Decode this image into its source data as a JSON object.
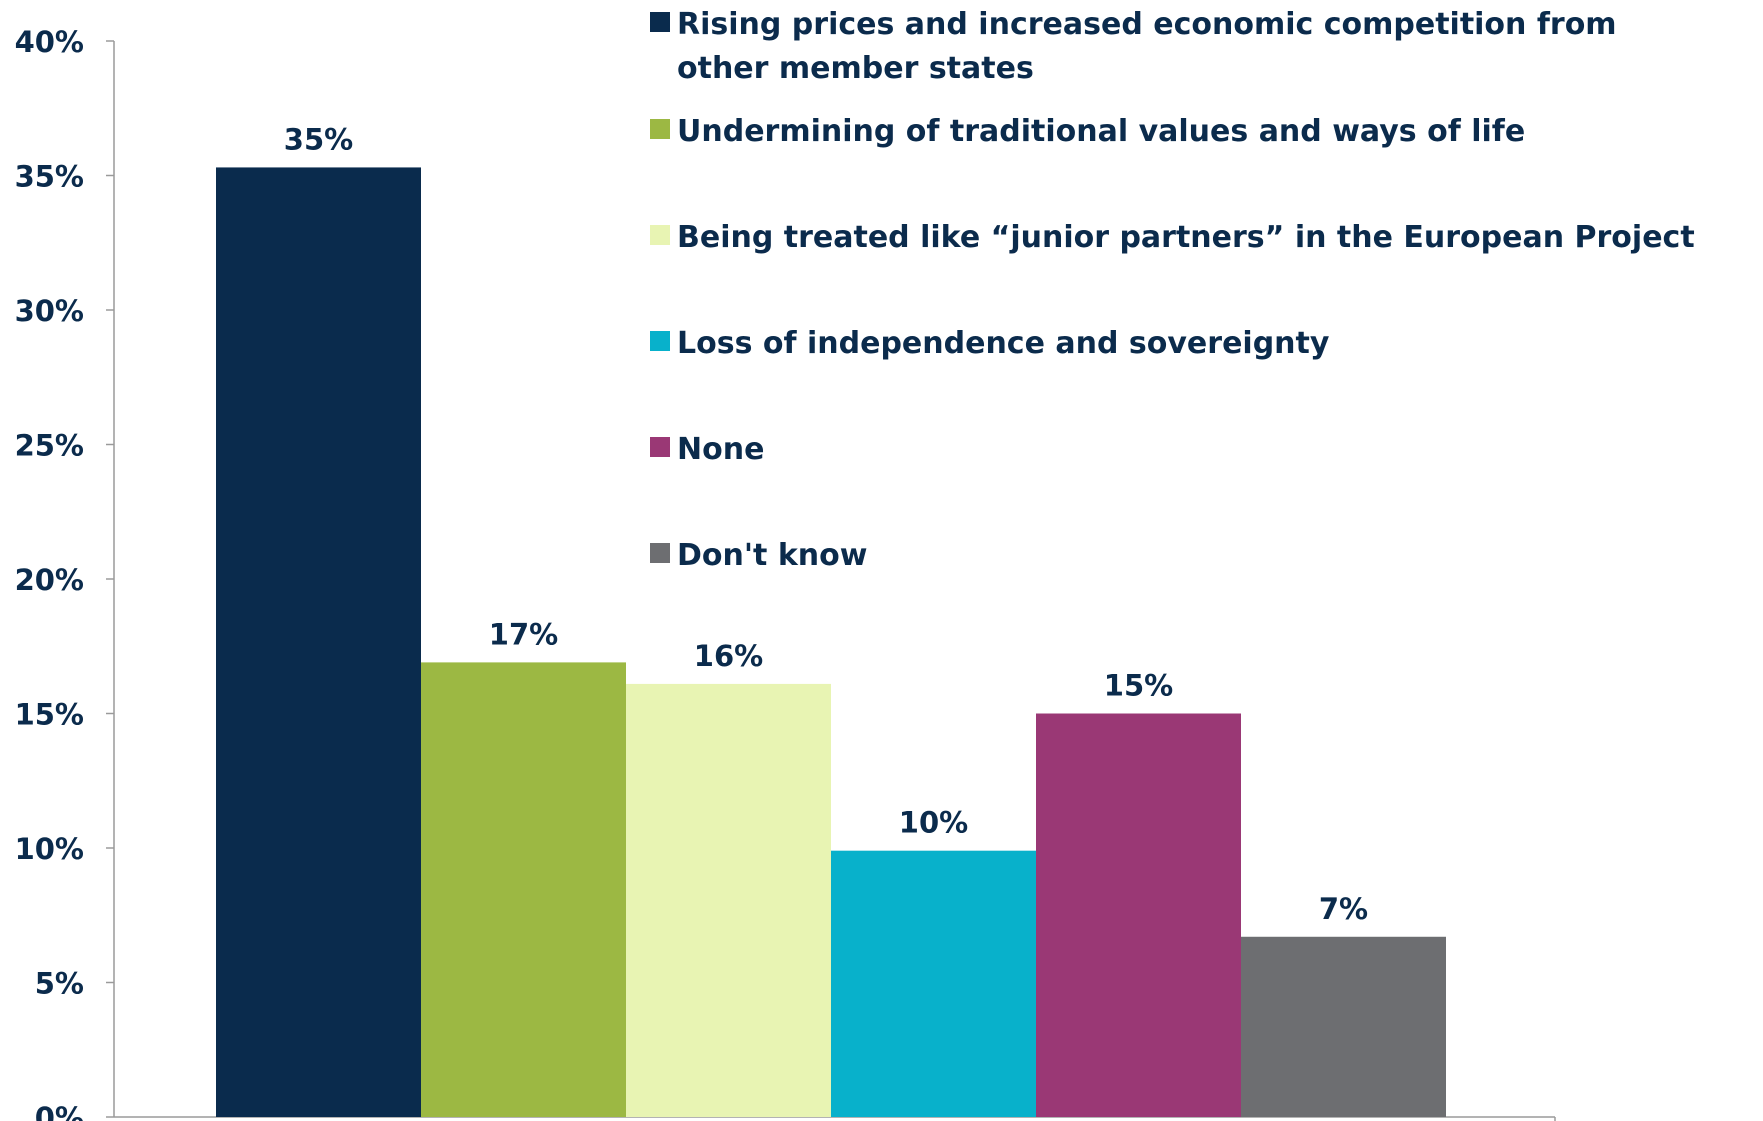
{
  "chart_data": {
    "type": "bar",
    "title": "",
    "xlabel": "",
    "ylabel": "",
    "ylim": [
      0,
      40
    ],
    "y_ticks": [
      0,
      5,
      10,
      15,
      20,
      25,
      30,
      35,
      40
    ],
    "y_tick_suffix": "%",
    "grid": false,
    "legend_position": "top-right",
    "series": [
      {
        "name": "Rising prices and increased economic competition from other member states",
        "value": 35.3,
        "label": "35%",
        "color": "#0a2b4d"
      },
      {
        "name": "Undermining of traditional values and ways of life",
        "value": 16.9,
        "label": "17%",
        "color": "#9cb843"
      },
      {
        "name": "Being treated like “junior partners” in the European Project",
        "value": 16.1,
        "label": "16%",
        "color": "#e8f4b3"
      },
      {
        "name": "Loss of independence and sovereignty",
        "value": 9.9,
        "label": "10%",
        "color": "#08b1cb"
      },
      {
        "name": "None",
        "value": 15.0,
        "label": "15%",
        "color": "#9a3875"
      },
      {
        "name": "Don't know",
        "value": 6.7,
        "label": "7%",
        "color": "#6d6e71"
      }
    ]
  },
  "legend": {
    "items": [
      {
        "lines": [
          "Rising prices and increased economic competition from",
          "other member states"
        ]
      },
      {
        "lines": [
          "Undermining of traditional values and ways of life"
        ]
      },
      {
        "lines": [
          "Being treated like “junior partners” in the European Project"
        ]
      },
      {
        "lines": [
          "Loss of independence and sovereignty"
        ]
      },
      {
        "lines": [
          "None"
        ]
      },
      {
        "lines": [
          "Don't know"
        ]
      }
    ]
  }
}
